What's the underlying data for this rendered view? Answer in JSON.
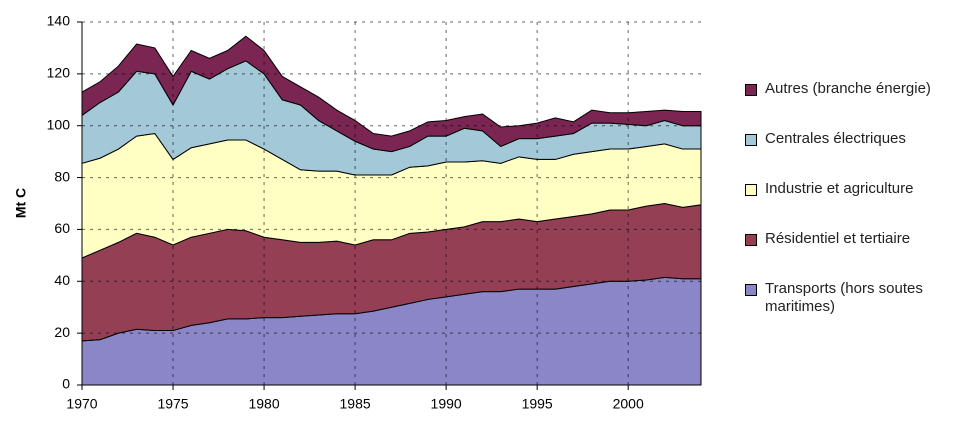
{
  "chart_data": {
    "type": "stacked_area",
    "ylabel": "Mt C",
    "x": [
      1970,
      1971,
      1972,
      1973,
      1974,
      1975,
      1976,
      1977,
      1978,
      1979,
      1980,
      1981,
      1982,
      1983,
      1984,
      1985,
      1986,
      1987,
      1988,
      1989,
      1990,
      1991,
      1992,
      1993,
      1994,
      1995,
      1996,
      1997,
      1998,
      1999,
      2000,
      2001,
      2002,
      2003,
      2004
    ],
    "xlim": [
      1970,
      2004
    ],
    "xticks": [
      1970,
      1975,
      1980,
      1985,
      1990,
      1995,
      2000
    ],
    "ylim": [
      0,
      140
    ],
    "yticks": [
      0,
      20,
      40,
      60,
      80,
      100,
      120,
      140
    ],
    "grid": true,
    "series": [
      {
        "name": "Transports (hors soutes maritimes)",
        "color": "#8b86c8",
        "values": [
          17,
          17.5,
          20,
          21.5,
          21,
          21,
          23,
          24,
          25.5,
          25.5,
          26,
          26,
          26.5,
          27,
          27.5,
          27.5,
          28.5,
          30,
          31.5,
          33,
          34,
          35,
          36,
          36,
          37,
          37,
          37,
          38,
          39,
          40,
          40,
          40.5,
          41.5,
          41,
          41
        ]
      },
      {
        "name": "Résidentiel et tertiaire",
        "color": "#953f55",
        "values": [
          32,
          34.5,
          35,
          37,
          36,
          33,
          34,
          34.5,
          34.5,
          34,
          31,
          30,
          28.5,
          28,
          28,
          26.5,
          27.5,
          26,
          27,
          26,
          26,
          26,
          27,
          27,
          27,
          26,
          27,
          27,
          27,
          27.5,
          27.5,
          28.5,
          28.5,
          27.5,
          28.5
        ]
      },
      {
        "name": "Industrie et agriculture",
        "color": "#ffffc4",
        "values": [
          36.5,
          35.5,
          36,
          37.5,
          40,
          33,
          34.5,
          34.5,
          34.5,
          35,
          34,
          31,
          28,
          27.5,
          27,
          27,
          25,
          25,
          25.5,
          25.5,
          26,
          25,
          23.5,
          22.5,
          24,
          24,
          23,
          24,
          24,
          23.5,
          23.5,
          23,
          23,
          22.5,
          21.5
        ]
      },
      {
        "name": "Centrales électriques",
        "color": "#a3c8d8",
        "values": [
          18.5,
          21.5,
          22,
          25,
          23,
          21,
          29.5,
          25,
          27.5,
          30.5,
          29,
          23,
          25,
          19.5,
          15.5,
          13,
          10,
          9,
          8,
          11.5,
          10,
          13,
          11.5,
          6.5,
          7,
          8,
          9,
          8,
          11,
          10,
          9.5,
          8,
          9,
          9,
          9
        ]
      },
      {
        "name": "Autres (branche énergie)",
        "color": "#7b2553",
        "values": [
          9,
          8,
          10,
          10.5,
          10,
          11,
          8,
          8,
          7,
          9.5,
          9,
          9,
          7,
          9,
          8,
          8,
          6,
          6,
          6,
          5.5,
          6,
          4.5,
          6.5,
          7.5,
          5,
          6,
          7,
          4.5,
          5,
          4,
          4.5,
          5.5,
          4,
          5.5,
          5.5
        ]
      }
    ]
  }
}
